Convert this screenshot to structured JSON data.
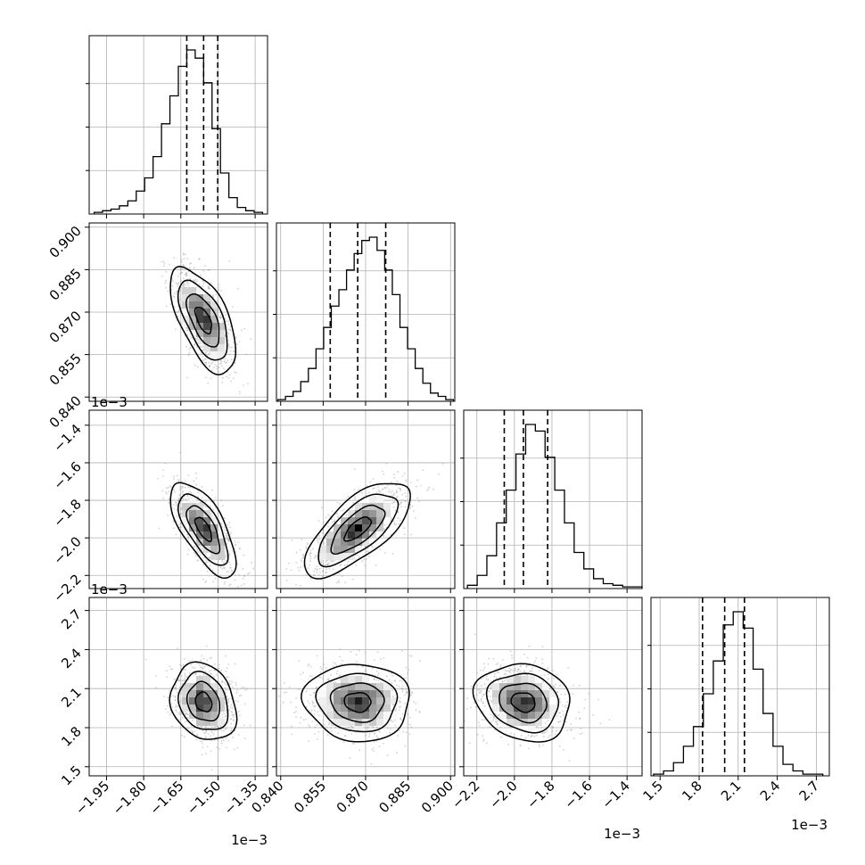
{
  "chart_data": {
    "type": "corner",
    "grid": true,
    "colors": {
      "line": "#000000",
      "grid": "#b0b0b0",
      "scatter": "#9a9a9a",
      "density_dark": "#000000",
      "density_light": "#ffffff"
    },
    "params": [
      {
        "ticks": [
          -1.95,
          -1.8,
          -1.65,
          -1.5,
          -1.35
        ],
        "tick_labels": [
          "−1.95",
          "−1.80",
          "−1.65",
          "−1.50",
          "−1.35"
        ],
        "range": [
          -2.02,
          -1.3
        ],
        "multiplier": "1e−3"
      },
      {
        "ticks": [
          0.84,
          0.855,
          0.87,
          0.885,
          0.9
        ],
        "tick_labels": [
          "0.840",
          "0.855",
          "0.870",
          "0.885",
          "0.900"
        ],
        "range": [
          0.8385,
          0.9015
        ],
        "multiplier": ""
      },
      {
        "ticks": [
          -2.2,
          -2.0,
          -1.8,
          -1.6,
          -1.4
        ],
        "tick_labels": [
          "−2.2",
          "−2.0",
          "−1.8",
          "−1.6",
          "−1.4"
        ],
        "range": [
          -2.27,
          -1.32
        ],
        "multiplier": "1e−3"
      },
      {
        "ticks": [
          1.5,
          1.8,
          2.1,
          2.4,
          2.7
        ],
        "tick_labels": [
          "1.5",
          "1.8",
          "2.1",
          "2.4",
          "2.7"
        ],
        "range": [
          1.43,
          2.8
        ],
        "multiplier": "1e−3"
      }
    ],
    "histograms": [
      {
        "param": 0,
        "edges_range": [
          -2.0,
          -1.32
        ],
        "counts": [
          1,
          2,
          3,
          5,
          8,
          14,
          22,
          35,
          55,
          72,
          90,
          100,
          95,
          80,
          52,
          25,
          10,
          4,
          2,
          1
        ],
        "quantiles": [
          -1.626,
          -1.558,
          -1.501
        ]
      },
      {
        "param": 1,
        "edges_range": [
          0.839,
          0.901
        ],
        "counts": [
          1,
          3,
          6,
          12,
          20,
          32,
          45,
          58,
          68,
          80,
          90,
          98,
          100,
          92,
          80,
          65,
          45,
          32,
          20,
          11,
          5,
          3,
          1
        ],
        "quantiles": [
          0.8575,
          0.8672,
          0.8771
        ]
      },
      {
        "param": 2,
        "edges_range": [
          -2.25,
          -1.32
        ],
        "counts": [
          2,
          8,
          20,
          40,
          60,
          82,
          100,
          96,
          80,
          60,
          40,
          22,
          12,
          6,
          3,
          2,
          1,
          1
        ],
        "quantiles": [
          -2.054,
          -1.952,
          -1.823
        ]
      },
      {
        "param": 3,
        "edges_range": [
          1.45,
          2.75
        ],
        "counts": [
          1,
          3,
          8,
          18,
          30,
          50,
          70,
          92,
          100,
          90,
          65,
          38,
          18,
          7,
          3,
          1,
          1
        ],
        "quantiles": [
          1.826,
          1.996,
          2.148
        ]
      }
    ],
    "pairs": [
      {
        "x_param": 0,
        "y_param": 1,
        "mean": [
          -1.558,
          0.8672
        ],
        "sd": [
          0.06,
          0.0085
        ],
        "corr": -0.6
      },
      {
        "x_param": 0,
        "y_param": 2,
        "mean": [
          -1.558,
          -1.952
        ],
        "sd": [
          0.06,
          0.115
        ],
        "corr": -0.68
      },
      {
        "x_param": 1,
        "y_param": 2,
        "mean": [
          0.8672,
          -1.952
        ],
        "sd": [
          0.0085,
          0.115
        ],
        "corr": 0.7
      },
      {
        "x_param": 0,
        "y_param": 3,
        "mean": [
          -1.558,
          1.996
        ],
        "sd": [
          0.06,
          0.135
        ],
        "corr": -0.2
      },
      {
        "x_param": 1,
        "y_param": 3,
        "mean": [
          0.8672,
          1.996
        ],
        "sd": [
          0.0085,
          0.135
        ],
        "corr": -0.05
      },
      {
        "x_param": 2,
        "y_param": 3,
        "mean": [
          -1.952,
          1.996
        ],
        "sd": [
          0.115,
          0.135
        ],
        "corr": -0.15
      }
    ],
    "contour_levels_sigma": [
      0.5,
      1.0,
      1.5,
      2.0
    ]
  }
}
